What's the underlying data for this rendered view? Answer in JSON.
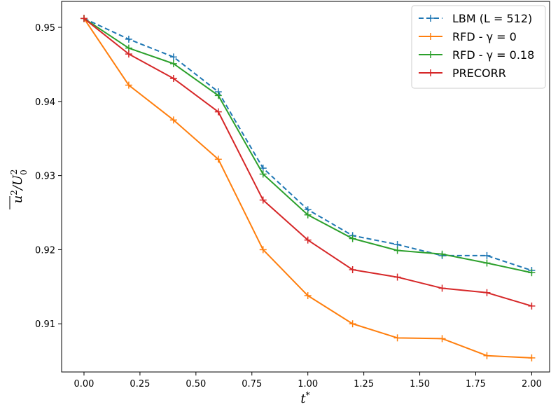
{
  "chart_data": {
    "type": "line",
    "xlabel": "t*",
    "ylabel": "u²/U₀²",
    "xlim": [
      -0.1,
      2.08
    ],
    "ylim": [
      0.9035,
      0.9535
    ],
    "xticks": [
      0.0,
      0.25,
      0.5,
      0.75,
      1.0,
      1.25,
      1.5,
      1.75,
      2.0
    ],
    "xtick_labels": [
      "0.00",
      "0.25",
      "0.50",
      "0.75",
      "1.00",
      "1.25",
      "1.50",
      "1.75",
      "2.00"
    ],
    "yticks": [
      0.91,
      0.92,
      0.93,
      0.94,
      0.95
    ],
    "ytick_labels": [
      "0.91",
      "0.92",
      "0.93",
      "0.94",
      "0.95"
    ],
    "grid": false,
    "legend_position": "top-right",
    "x": [
      0.0,
      0.2,
      0.4,
      0.6,
      0.8,
      1.0,
      1.2,
      1.4,
      1.6,
      1.8,
      2.0
    ],
    "series": [
      {
        "name": "LBM (L = 512)",
        "color": "#1f77b4",
        "linestyle": "dashed",
        "values": [
          0.9512,
          0.9484,
          0.946,
          0.9413,
          0.931,
          0.9254,
          0.9219,
          0.9207,
          0.9192,
          0.9192,
          0.9172
        ]
      },
      {
        "name": "RFD - γ = 0",
        "color": "#ff7f0e",
        "linestyle": "solid",
        "values": [
          0.9512,
          0.9422,
          0.9375,
          0.9322,
          0.92,
          0.9138,
          0.91,
          0.9081,
          0.908,
          0.9057,
          0.9054
        ]
      },
      {
        "name": "RFD - γ = 0.18",
        "color": "#2ca02c",
        "linestyle": "solid",
        "values": [
          0.9512,
          0.9472,
          0.9451,
          0.9408,
          0.9302,
          0.9247,
          0.9215,
          0.9199,
          0.9194,
          0.9182,
          0.9169
        ]
      },
      {
        "name": "PRECORR",
        "color": "#d62728",
        "linestyle": "solid",
        "values": [
          0.9512,
          0.9464,
          0.9431,
          0.9386,
          0.9267,
          0.9213,
          0.9173,
          0.9163,
          0.9148,
          0.9142,
          0.9124
        ]
      }
    ]
  }
}
